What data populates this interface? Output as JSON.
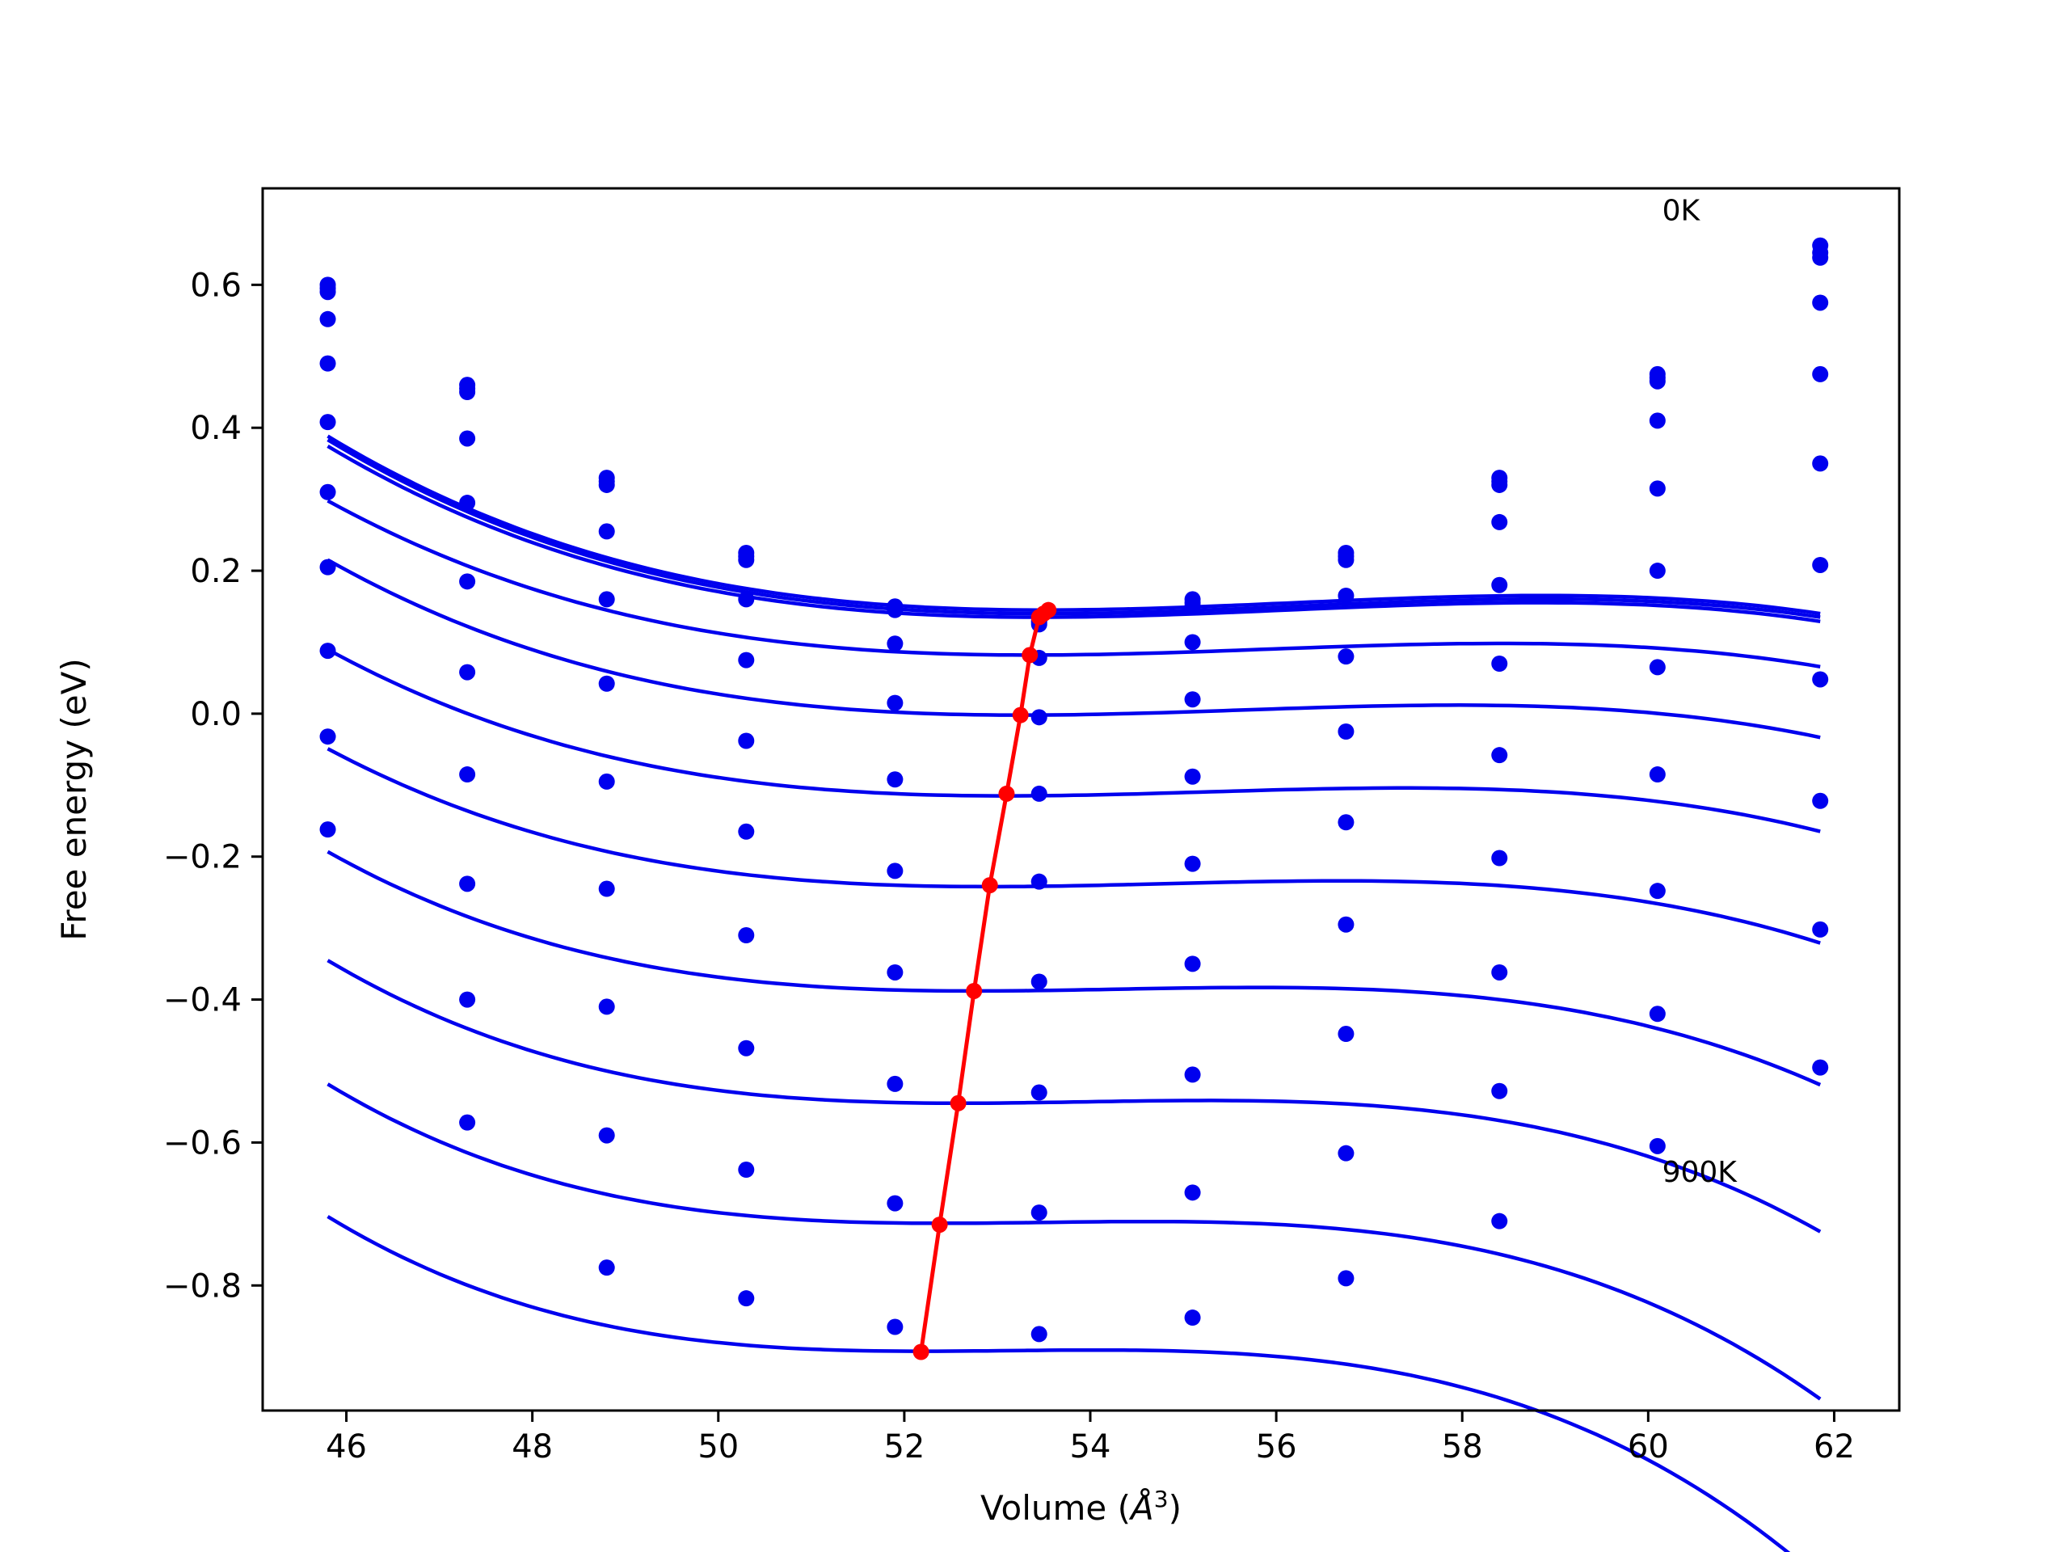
{
  "chart_data": {
    "type": "line",
    "title": "",
    "xlabel": "Volume (",
    "xlabel_unit": "Å",
    "xlabel_exp": "3",
    "xlabel_close": ")",
    "ylabel": "Free energy (eV)",
    "xlim": [
      45.1,
      62.7
    ],
    "ylim": [
      -0.975,
      0.735
    ],
    "xticks": [
      46,
      48,
      50,
      52,
      54,
      56,
      58,
      60,
      62
    ],
    "xtick_labels": [
      "46",
      "48",
      "50",
      "52",
      "54",
      "56",
      "58",
      "60",
      "62"
    ],
    "yticks": [
      -0.8,
      -0.6,
      -0.4,
      -0.2,
      0.0,
      0.2,
      0.4,
      0.6
    ],
    "ytick_labels": [
      "−0.8",
      "−0.6",
      "−0.4",
      "−0.2",
      "0.0",
      "0.2",
      "0.4",
      "0.6"
    ],
    "grid": false,
    "legend": "none",
    "annotations": [
      {
        "text": "0K",
        "x": 60.15,
        "y": 0.705
      },
      {
        "text": "900K",
        "x": 60.15,
        "y": -0.64
      }
    ],
    "colors": {
      "fit": "#0000ee",
      "points": "#0000ee",
      "minimum_path": "#ff0000"
    },
    "x": [
      45.8,
      47.3,
      48.8,
      50.3,
      51.9,
      53.45,
      55.1,
      56.75,
      58.4,
      60.1,
      61.85
    ],
    "series": [
      {
        "points": [
          0.6,
          0.46,
          0.33,
          0.225,
          0.15,
          0.13,
          0.16,
          0.225,
          0.33,
          0.475,
          0.655
        ],
        "fit": {
          "v0": 53.5,
          "e0": 0.145,
          "a": 0.0021,
          "b": 0.00026
        }
      },
      {
        "points": [
          0.595,
          0.455,
          0.325,
          0.22,
          0.148,
          0.128,
          0.155,
          0.22,
          0.325,
          0.47,
          0.645
        ],
        "fit": {
          "v0": 53.5,
          "e0": 0.14,
          "a": 0.0021,
          "b": 0.00026
        }
      },
      {
        "points": [
          0.59,
          0.45,
          0.32,
          0.215,
          0.145,
          0.125,
          0.15,
          0.215,
          0.32,
          0.465,
          0.638
        ],
        "fit": {
          "v0": 53.45,
          "e0": 0.135,
          "a": 0.0021,
          "b": 0.00026
        }
      },
      {
        "points": [
          0.552,
          0.385,
          0.255,
          0.16,
          0.098,
          0.078,
          0.1,
          0.165,
          0.268,
          0.41,
          0.575
        ],
        "fit": {
          "v0": 53.35,
          "e0": 0.082,
          "a": 0.0019,
          "b": 0.00025
        }
      },
      {
        "points": [
          0.49,
          0.295,
          0.16,
          0.075,
          0.015,
          -0.005,
          0.02,
          0.08,
          0.18,
          0.315,
          0.475
        ],
        "fit": {
          "v0": 53.25,
          "e0": -0.002,
          "a": 0.0019,
          "b": 0.00027
        }
      },
      {
        "points": [
          0.408,
          0.185,
          0.042,
          -0.038,
          -0.092,
          -0.112,
          -0.088,
          -0.025,
          0.07,
          0.2,
          0.35
        ],
        "fit": {
          "v0": 53.1,
          "e0": -0.115,
          "a": 0.0018,
          "b": 0.00028
        }
      },
      {
        "points": [
          0.31,
          0.058,
          -0.095,
          -0.165,
          -0.22,
          -0.235,
          -0.21,
          -0.152,
          -0.058,
          0.065,
          0.208
        ],
        "fit": {
          "v0": 52.9,
          "e0": -0.242,
          "a": 0.0017,
          "b": 0.0003
        }
      },
      {
        "points": [
          0.205,
          -0.085,
          -0.245,
          -0.31,
          -0.362,
          -0.375,
          -0.35,
          -0.295,
          -0.202,
          -0.085,
          0.048
        ],
        "fit": {
          "v0": 52.75,
          "e0": -0.388,
          "a": 0.0016,
          "b": 0.00035
        }
      },
      {
        "points": [
          0.088,
          -0.238,
          -0.41,
          -0.468,
          -0.518,
          -0.53,
          -0.505,
          -0.448,
          -0.362,
          -0.248,
          -0.122
        ],
        "fit": {
          "v0": 52.6,
          "e0": -0.545,
          "a": 0.0016,
          "b": 0.0004
        }
      },
      {
        "points": [
          -0.032,
          -0.4,
          -0.59,
          -0.638,
          -0.685,
          -0.698,
          -0.67,
          -0.615,
          -0.528,
          -0.42,
          -0.302
        ],
        "fit": {
          "v0": 52.4,
          "e0": -0.713,
          "a": 0.0015,
          "b": 0.00045
        }
      },
      {
        "points": [
          -0.162,
          -0.572,
          -0.775,
          -0.818,
          -0.858,
          -0.868,
          -0.845,
          -0.79,
          -0.71,
          -0.605,
          -0.495
        ],
        "fit": {
          "v0": 52.2,
          "e0": -0.892,
          "a": 0.0014,
          "b": 0.0005
        }
      }
    ],
    "minimum_path": {
      "x": [
        53.55,
        53.5,
        53.45,
        53.35,
        53.25,
        53.1,
        52.92,
        52.75,
        52.58,
        52.38,
        52.18
      ],
      "y": [
        0.145,
        0.14,
        0.135,
        0.082,
        -0.002,
        -0.112,
        -0.24,
        -0.388,
        -0.545,
        -0.715,
        -0.893
      ]
    }
  }
}
